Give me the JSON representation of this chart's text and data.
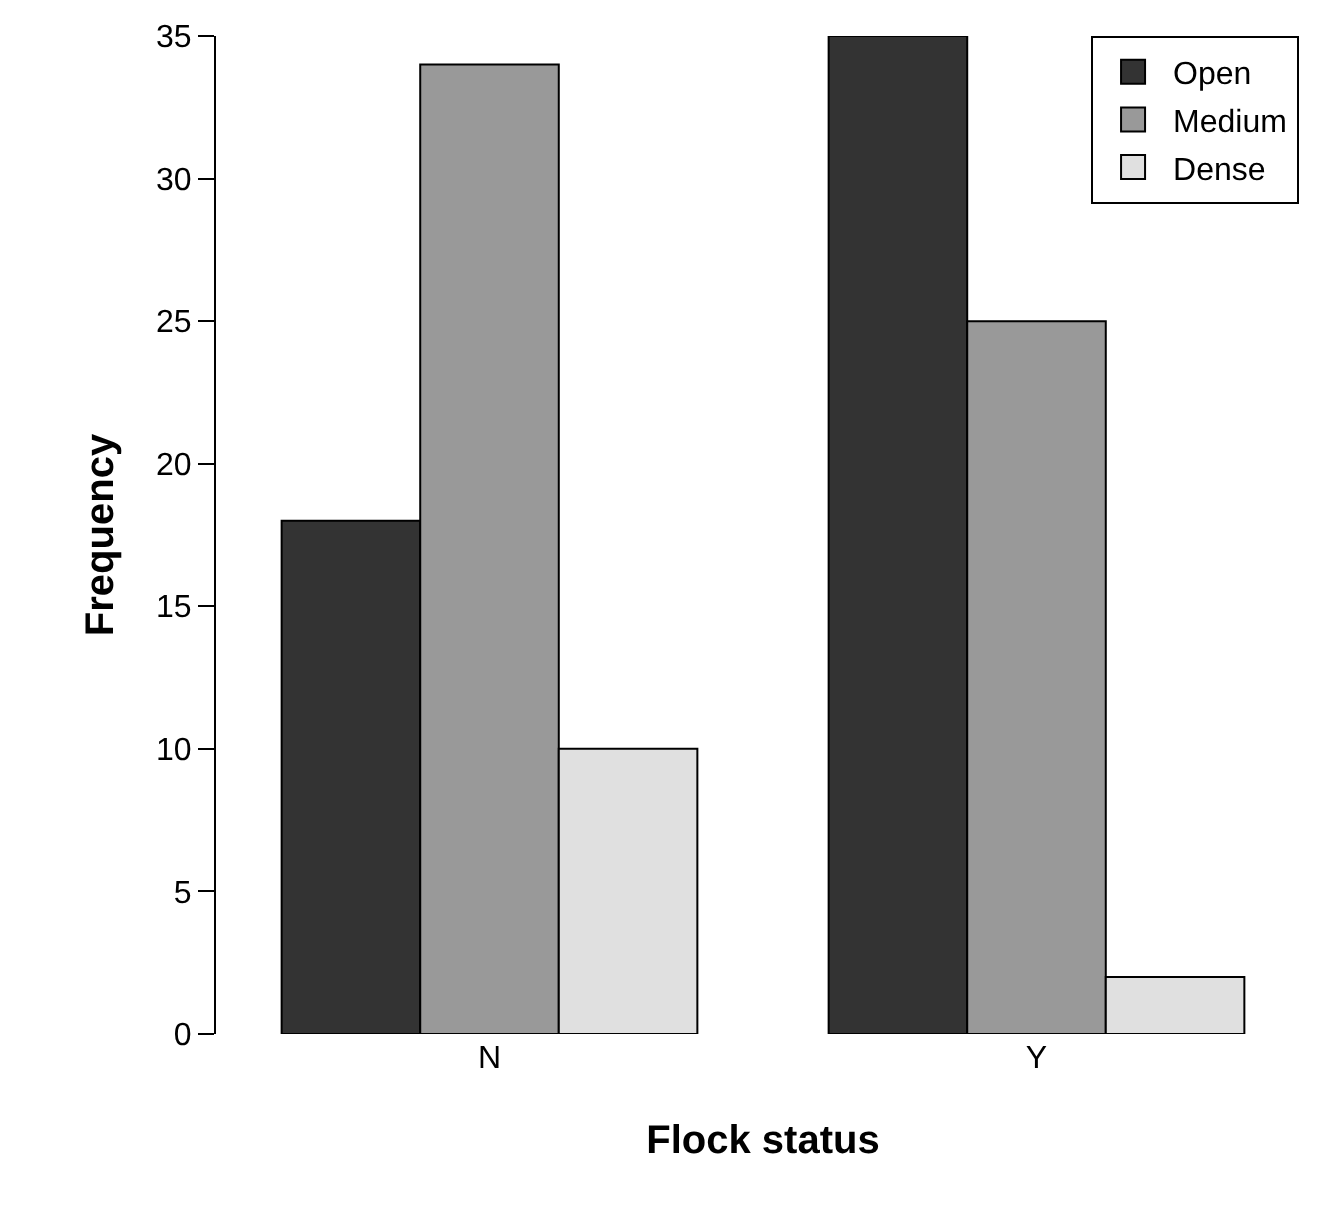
{
  "chart_data": {
    "type": "bar",
    "xlabel": "Flock status",
    "ylabel": "Frequency",
    "categories": [
      "N",
      "Y"
    ],
    "series": [
      {
        "name": "Open",
        "color": "#333333",
        "values": [
          18,
          35
        ]
      },
      {
        "name": "Medium",
        "color": "#999999",
        "values": [
          34,
          25
        ]
      },
      {
        "name": "Dense",
        "color": "#e0e0e0",
        "values": [
          10,
          2
        ]
      }
    ],
    "ylim": [
      0,
      35
    ],
    "yticks": [
      0,
      5,
      10,
      15,
      20,
      25,
      30,
      35
    ],
    "grid": false,
    "legend": "top right"
  }
}
